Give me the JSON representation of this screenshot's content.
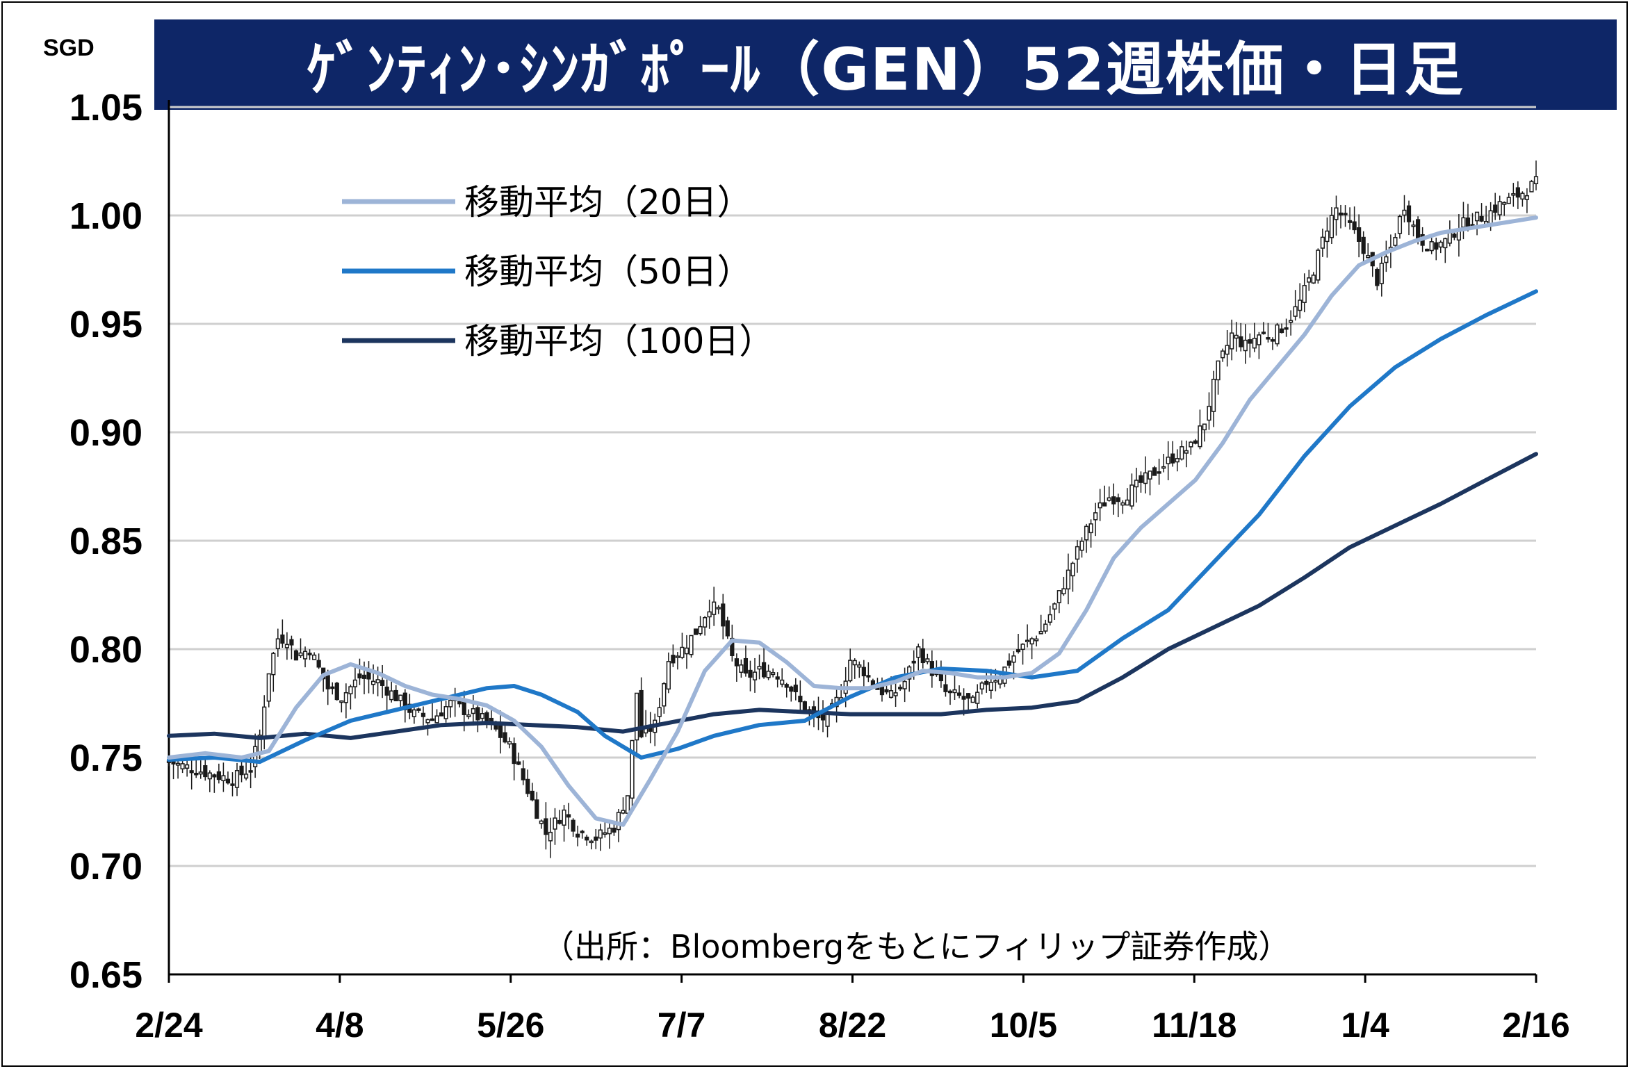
{
  "title": "ｹﾞﾝﾃｨﾝ･ｼﾝｶﾞﾎﾟｰﾙ（GEN）52週株価・日足",
  "unit": "SGD",
  "source": "（出所：Bloombergをもとにフィリップ証券作成）",
  "colors": {
    "title_bg": "#0e2667",
    "ma20": "#9db4d7",
    "ma50": "#1f78c8",
    "ma100": "#1c355e",
    "grid": "#cfcfcf",
    "candle": "#1a1a1a"
  },
  "chart_data": {
    "type": "candlestick",
    "ylabel": "SGD",
    "ylim": [
      0.65,
      1.05
    ],
    "y_ticks": [
      "0.65",
      "0.70",
      "0.75",
      "0.80",
      "0.85",
      "0.90",
      "0.95",
      "1.00",
      "1.05"
    ],
    "x_ticks": [
      "2/24",
      "4/8",
      "5/26",
      "7/7",
      "8/22",
      "10/5",
      "11/18",
      "1/4",
      "2/16"
    ],
    "grid": true,
    "legend_position": "top-left",
    "legend": [
      "移動平均（20日）",
      "移動平均（50日）",
      "移動平均（100日）"
    ],
    "close_path": [
      [
        0,
        0.748
      ],
      [
        5,
        0.745
      ],
      [
        10,
        0.742
      ],
      [
        14,
        0.74
      ],
      [
        18,
        0.745
      ],
      [
        20,
        0.76
      ],
      [
        22,
        0.79
      ],
      [
        24,
        0.805
      ],
      [
        26,
        0.805
      ],
      [
        28,
        0.797
      ],
      [
        31,
        0.8
      ],
      [
        35,
        0.782
      ],
      [
        38,
        0.778
      ],
      [
        42,
        0.787
      ],
      [
        46,
        0.785
      ],
      [
        50,
        0.778
      ],
      [
        54,
        0.77
      ],
      [
        58,
        0.768
      ],
      [
        62,
        0.775
      ],
      [
        67,
        0.77
      ],
      [
        71,
        0.765
      ],
      [
        75,
        0.755
      ],
      [
        78,
        0.74
      ],
      [
        81,
        0.725
      ],
      [
        83,
        0.715
      ],
      [
        87,
        0.725
      ],
      [
        90,
        0.716
      ],
      [
        94,
        0.713
      ],
      [
        98,
        0.718
      ],
      [
        101,
        0.733
      ],
      [
        103,
        0.78
      ],
      [
        104,
        0.76
      ],
      [
        107,
        0.765
      ],
      [
        110,
        0.795
      ],
      [
        113,
        0.8
      ],
      [
        116,
        0.808
      ],
      [
        119,
        0.82
      ],
      [
        121,
        0.818
      ],
      [
        124,
        0.796
      ],
      [
        127,
        0.787
      ],
      [
        130,
        0.79
      ],
      [
        133,
        0.79
      ],
      [
        136,
        0.785
      ],
      [
        139,
        0.775
      ],
      [
        142,
        0.768
      ],
      [
        145,
        0.768
      ],
      [
        148,
        0.78
      ],
      [
        150,
        0.795
      ],
      [
        153,
        0.79
      ],
      [
        156,
        0.782
      ],
      [
        159,
        0.778
      ],
      [
        162,
        0.785
      ],
      [
        165,
        0.8
      ],
      [
        168,
        0.79
      ],
      [
        171,
        0.78
      ],
      [
        174,
        0.778
      ],
      [
        177,
        0.775
      ],
      [
        180,
        0.785
      ],
      [
        183,
        0.788
      ],
      [
        186,
        0.797
      ],
      [
        189,
        0.803
      ],
      [
        192,
        0.808
      ],
      [
        195,
        0.82
      ],
      [
        198,
        0.835
      ],
      [
        201,
        0.85
      ],
      [
        204,
        0.863
      ],
      [
        207,
        0.87
      ],
      [
        210,
        0.87
      ],
      [
        213,
        0.875
      ],
      [
        216,
        0.88
      ],
      [
        219,
        0.885
      ],
      [
        222,
        0.89
      ],
      [
        225,
        0.893
      ],
      [
        228,
        0.905
      ],
      [
        231,
        0.93
      ],
      [
        234,
        0.945
      ],
      [
        237,
        0.94
      ],
      [
        240,
        0.945
      ],
      [
        243,
        0.945
      ],
      [
        246,
        0.95
      ],
      [
        249,
        0.96
      ],
      [
        252,
        0.975
      ],
      [
        255,
        0.995
      ],
      [
        257,
        1.003
      ],
      [
        260,
        0.995
      ],
      [
        263,
        0.985
      ],
      [
        266,
        0.97
      ],
      [
        269,
        0.985
      ],
      [
        272,
        1.005
      ],
      [
        275,
        0.99
      ],
      [
        278,
        0.985
      ],
      [
        281,
        0.988
      ],
      [
        284,
        0.995
      ],
      [
        287,
        0.998
      ],
      [
        290,
        1.0
      ],
      [
        293,
        1.005
      ],
      [
        296,
        1.008
      ],
      [
        299,
        1.012
      ],
      [
        301,
        1.015
      ]
    ],
    "ma20": [
      [
        0,
        0.75
      ],
      [
        8,
        0.752
      ],
      [
        16,
        0.75
      ],
      [
        22,
        0.753
      ],
      [
        28,
        0.773
      ],
      [
        34,
        0.788
      ],
      [
        40,
        0.793
      ],
      [
        46,
        0.789
      ],
      [
        52,
        0.783
      ],
      [
        58,
        0.779
      ],
      [
        64,
        0.777
      ],
      [
        70,
        0.774
      ],
      [
        76,
        0.767
      ],
      [
        82,
        0.755
      ],
      [
        88,
        0.737
      ],
      [
        94,
        0.722
      ],
      [
        100,
        0.719
      ],
      [
        106,
        0.74
      ],
      [
        112,
        0.762
      ],
      [
        118,
        0.79
      ],
      [
        124,
        0.804
      ],
      [
        130,
        0.803
      ],
      [
        136,
        0.794
      ],
      [
        142,
        0.783
      ],
      [
        148,
        0.782
      ],
      [
        154,
        0.782
      ],
      [
        160,
        0.785
      ],
      [
        166,
        0.79
      ],
      [
        172,
        0.789
      ],
      [
        178,
        0.787
      ],
      [
        184,
        0.787
      ],
      [
        190,
        0.789
      ],
      [
        196,
        0.798
      ],
      [
        202,
        0.818
      ],
      [
        208,
        0.842
      ],
      [
        214,
        0.856
      ],
      [
        220,
        0.867
      ],
      [
        226,
        0.878
      ],
      [
        232,
        0.895
      ],
      [
        238,
        0.915
      ],
      [
        244,
        0.93
      ],
      [
        250,
        0.945
      ],
      [
        256,
        0.963
      ],
      [
        262,
        0.977
      ],
      [
        268,
        0.983
      ],
      [
        274,
        0.988
      ],
      [
        280,
        0.992
      ],
      [
        286,
        0.994
      ],
      [
        292,
        0.996
      ],
      [
        301,
        0.999
      ]
    ],
    "ma50": [
      [
        0,
        0.749
      ],
      [
        10,
        0.75
      ],
      [
        20,
        0.748
      ],
      [
        30,
        0.758
      ],
      [
        40,
        0.767
      ],
      [
        50,
        0.772
      ],
      [
        60,
        0.777
      ],
      [
        70,
        0.782
      ],
      [
        76,
        0.783
      ],
      [
        82,
        0.779
      ],
      [
        90,
        0.771
      ],
      [
        96,
        0.76
      ],
      [
        104,
        0.75
      ],
      [
        112,
        0.754
      ],
      [
        120,
        0.76
      ],
      [
        130,
        0.765
      ],
      [
        140,
        0.767
      ],
      [
        150,
        0.778
      ],
      [
        160,
        0.787
      ],
      [
        170,
        0.791
      ],
      [
        180,
        0.79
      ],
      [
        190,
        0.787
      ],
      [
        200,
        0.79
      ],
      [
        210,
        0.805
      ],
      [
        220,
        0.818
      ],
      [
        230,
        0.84
      ],
      [
        240,
        0.862
      ],
      [
        250,
        0.889
      ],
      [
        260,
        0.912
      ],
      [
        270,
        0.93
      ],
      [
        280,
        0.943
      ],
      [
        290,
        0.954
      ],
      [
        301,
        0.965
      ]
    ],
    "ma100": [
      [
        0,
        0.76
      ],
      [
        10,
        0.761
      ],
      [
        20,
        0.759
      ],
      [
        30,
        0.761
      ],
      [
        40,
        0.759
      ],
      [
        50,
        0.762
      ],
      [
        60,
        0.765
      ],
      [
        70,
        0.766
      ],
      [
        80,
        0.765
      ],
      [
        90,
        0.764
      ],
      [
        100,
        0.762
      ],
      [
        110,
        0.766
      ],
      [
        120,
        0.77
      ],
      [
        130,
        0.772
      ],
      [
        140,
        0.771
      ],
      [
        150,
        0.77
      ],
      [
        160,
        0.77
      ],
      [
        170,
        0.77
      ],
      [
        180,
        0.772
      ],
      [
        190,
        0.773
      ],
      [
        200,
        0.776
      ],
      [
        210,
        0.787
      ],
      [
        220,
        0.8
      ],
      [
        230,
        0.81
      ],
      [
        240,
        0.82
      ],
      [
        250,
        0.833
      ],
      [
        260,
        0.847
      ],
      [
        270,
        0.857
      ],
      [
        280,
        0.867
      ],
      [
        290,
        0.878
      ],
      [
        301,
        0.89
      ]
    ]
  }
}
